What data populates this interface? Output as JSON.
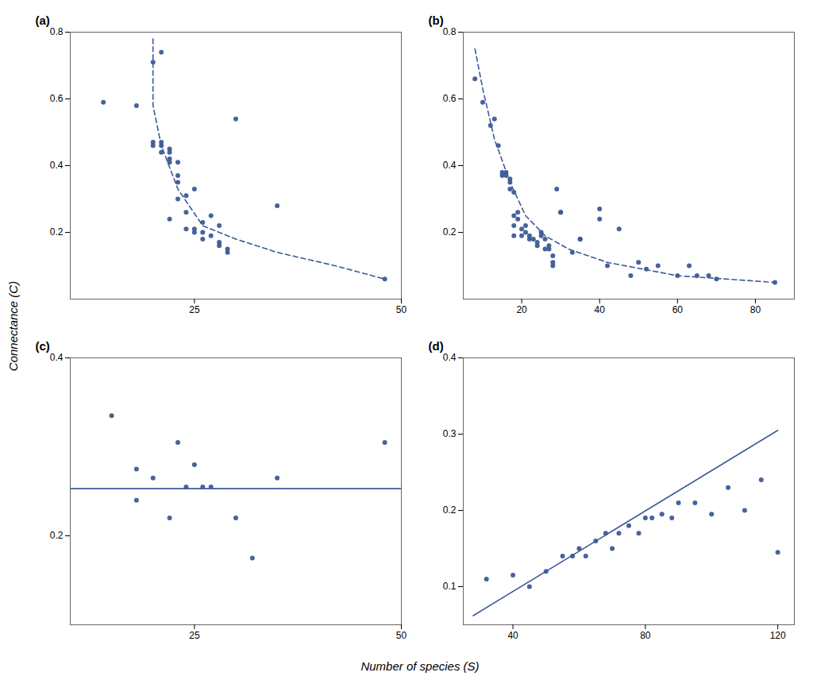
{
  "xlabel": "Number of species (S)",
  "ylabel": "Connectance (C)",
  "chart_data": [
    {
      "type": "scatter",
      "title": "(a)",
      "xlim": [
        10,
        50
      ],
      "ylim": [
        0.0,
        0.8
      ],
      "xticks": [
        25,
        50
      ],
      "yticks": [
        0.2,
        0.4,
        0.6,
        0.8
      ],
      "grid": false,
      "series": [
        {
          "type": "scatter",
          "color": "#3d5a99",
          "x": [
            14,
            18,
            20,
            20,
            21,
            21,
            21,
            22,
            22,
            22,
            22,
            22,
            23,
            23,
            23,
            23,
            24,
            24,
            24,
            25,
            25,
            25,
            26,
            26,
            26,
            27,
            27,
            28,
            28,
            28,
            29,
            29,
            30,
            35,
            48
          ],
          "values": [
            0.59,
            0.58,
            0.46,
            0.47,
            0.46,
            0.47,
            0.44,
            0.41,
            0.42,
            0.44,
            0.45,
            0.24,
            0.35,
            0.37,
            0.41,
            0.3,
            0.31,
            0.21,
            0.26,
            0.2,
            0.21,
            0.33,
            0.23,
            0.2,
            0.18,
            0.19,
            0.25,
            0.17,
            0.16,
            0.22,
            0.14,
            0.15,
            0.54,
            0.28,
            0.06
          ]
        },
        {
          "type": "scatter",
          "color": "#3d5a99",
          "x": [
            20,
            21
          ],
          "values": [
            0.71,
            0.74
          ]
        },
        {
          "type": "line",
          "line_style": "dashed",
          "color": "#3d5a99",
          "x": [
            20,
            20,
            21,
            23,
            26,
            30,
            35,
            42,
            48
          ],
          "values": [
            0.78,
            0.58,
            0.46,
            0.33,
            0.22,
            0.18,
            0.14,
            0.1,
            0.06
          ]
        }
      ]
    },
    {
      "type": "scatter",
      "title": "(b)",
      "xlim": [
        5,
        90
      ],
      "ylim": [
        0.0,
        0.8
      ],
      "xticks": [
        20,
        40,
        60,
        80
      ],
      "yticks": [
        0.2,
        0.4,
        0.6,
        0.8
      ],
      "grid": false,
      "series": [
        {
          "type": "scatter",
          "color": "#3d5a99",
          "x": [
            8,
            10,
            12,
            13,
            14,
            15,
            15,
            16,
            16,
            17,
            17,
            17,
            18,
            18,
            18,
            18,
            19,
            19,
            20,
            20,
            21,
            21,
            22,
            22,
            23,
            24,
            24,
            25,
            25,
            26,
            26,
            27,
            27,
            28,
            28,
            28,
            29,
            30,
            30,
            33,
            35,
            35,
            40,
            40,
            42,
            45,
            48,
            50,
            52,
            55,
            60,
            63,
            65,
            68,
            70,
            85
          ],
          "values": [
            0.66,
            0.59,
            0.52,
            0.54,
            0.46,
            0.37,
            0.38,
            0.38,
            0.37,
            0.33,
            0.35,
            0.36,
            0.32,
            0.25,
            0.22,
            0.19,
            0.26,
            0.24,
            0.21,
            0.19,
            0.22,
            0.2,
            0.19,
            0.18,
            0.18,
            0.17,
            0.16,
            0.19,
            0.2,
            0.15,
            0.18,
            0.15,
            0.16,
            0.13,
            0.11,
            0.1,
            0.33,
            0.26,
            0.26,
            0.14,
            0.18,
            0.18,
            0.27,
            0.24,
            0.1,
            0.21,
            0.07,
            0.11,
            0.09,
            0.1,
            0.07,
            0.1,
            0.07,
            0.07,
            0.06,
            0.05
          ]
        },
        {
          "type": "line",
          "line_style": "dashed",
          "color": "#3d5a99",
          "x": [
            8,
            10,
            13,
            17,
            21,
            26,
            32,
            42,
            60,
            85
          ],
          "values": [
            0.75,
            0.63,
            0.48,
            0.35,
            0.25,
            0.19,
            0.15,
            0.11,
            0.07,
            0.05
          ]
        }
      ]
    },
    {
      "type": "scatter",
      "title": "(c)",
      "xlim": [
        10,
        50
      ],
      "ylim": [
        0.1,
        0.4
      ],
      "xticks": [
        25,
        50
      ],
      "yticks": [
        0.2,
        0.4
      ],
      "grid": false,
      "series": [
        {
          "type": "scatter",
          "color": "#3d5a99",
          "x": [
            15,
            18,
            18,
            20,
            22,
            23,
            24,
            25,
            26,
            27,
            30,
            32,
            35,
            48
          ],
          "values": [
            0.335,
            0.275,
            0.24,
            0.265,
            0.22,
            0.305,
            0.255,
            0.28,
            0.255,
            0.255,
            0.22,
            0.175,
            0.265,
            0.305
          ]
        },
        {
          "type": "line",
          "line_style": "solid",
          "color": "#3d5a99",
          "x": [
            10,
            50
          ],
          "values": [
            0.253,
            0.253
          ]
        }
      ]
    },
    {
      "type": "scatter",
      "title": "(d)",
      "xlim": [
        25,
        125
      ],
      "ylim": [
        0.05,
        0.4
      ],
      "xticks": [
        40,
        80,
        120
      ],
      "yticks": [
        0.1,
        0.2,
        0.3,
        0.4
      ],
      "grid": false,
      "series": [
        {
          "type": "scatter",
          "color": "#3d5a99",
          "x": [
            32,
            40,
            45,
            50,
            55,
            58,
            60,
            62,
            65,
            68,
            70,
            72,
            75,
            78,
            80,
            82,
            85,
            88,
            90,
            95,
            100,
            105,
            110,
            115,
            120
          ],
          "values": [
            0.11,
            0.115,
            0.1,
            0.12,
            0.14,
            0.14,
            0.15,
            0.14,
            0.16,
            0.17,
            0.15,
            0.17,
            0.18,
            0.17,
            0.19,
            0.19,
            0.195,
            0.19,
            0.21,
            0.21,
            0.195,
            0.23,
            0.2,
            0.24,
            0.145
          ]
        },
        {
          "type": "line",
          "line_style": "solid",
          "color": "#3d5a99",
          "x": [
            28,
            120
          ],
          "values": [
            0.062,
            0.305
          ]
        }
      ]
    }
  ]
}
